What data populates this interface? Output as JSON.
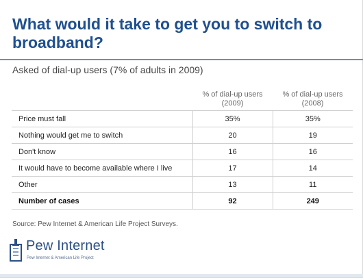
{
  "header": {
    "title": "What would it take to get you to switch to broadband?",
    "subtitle": "Asked of dial-up users (7% of adults in 2009)"
  },
  "table": {
    "columns": [
      "% of dial-up users (2009)",
      "% of dial-up users (2008)"
    ],
    "rows": [
      {
        "label": "Price must fall",
        "v2009": "35%",
        "v2008": "35%"
      },
      {
        "label": "Nothing would get me to switch",
        "v2009": "20",
        "v2008": "19"
      },
      {
        "label": "Don't know",
        "v2009": "16",
        "v2008": "16"
      },
      {
        "label": "It would have to become available where I live",
        "v2009": "17",
        "v2008": "14"
      },
      {
        "label": "Other",
        "v2009": "13",
        "v2008": "11"
      }
    ],
    "totals": {
      "label": "Number of cases",
      "v2009": "92",
      "v2008": "249"
    }
  },
  "footer": {
    "source": "Source: Pew Internet & American Life Project Surveys."
  },
  "logo": {
    "name": "Pew Internet",
    "tagline": "Pew Internet & American Life Project",
    "color": "#2a4f85"
  }
}
